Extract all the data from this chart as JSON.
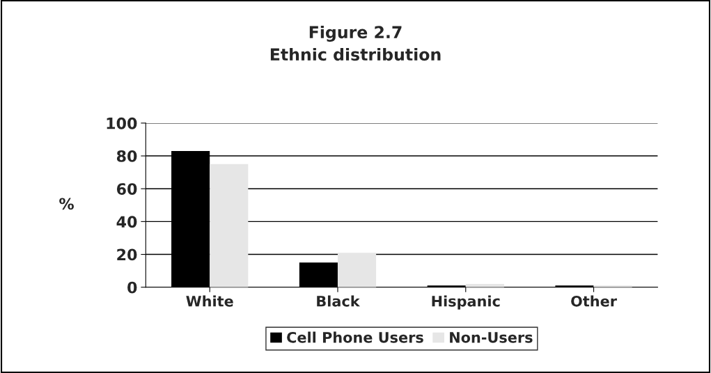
{
  "chart_data": {
    "type": "bar",
    "title": "Figure 2.7\nEthnic distribution",
    "ylabel": "%",
    "categories": [
      "White",
      "Black",
      "Hispanic",
      "Other"
    ],
    "series": [
      {
        "name": "Cell Phone Users",
        "color": "#000000",
        "values": [
          83,
          15,
          1,
          1
        ]
      },
      {
        "name": "Non-Users",
        "color": "#e6e6e6",
        "values": [
          75,
          21,
          2,
          1
        ]
      }
    ],
    "ylim": [
      0,
      100
    ],
    "yticks": [
      0,
      20,
      40,
      60,
      80,
      100
    ],
    "grid": "y",
    "legend": "bottom"
  }
}
